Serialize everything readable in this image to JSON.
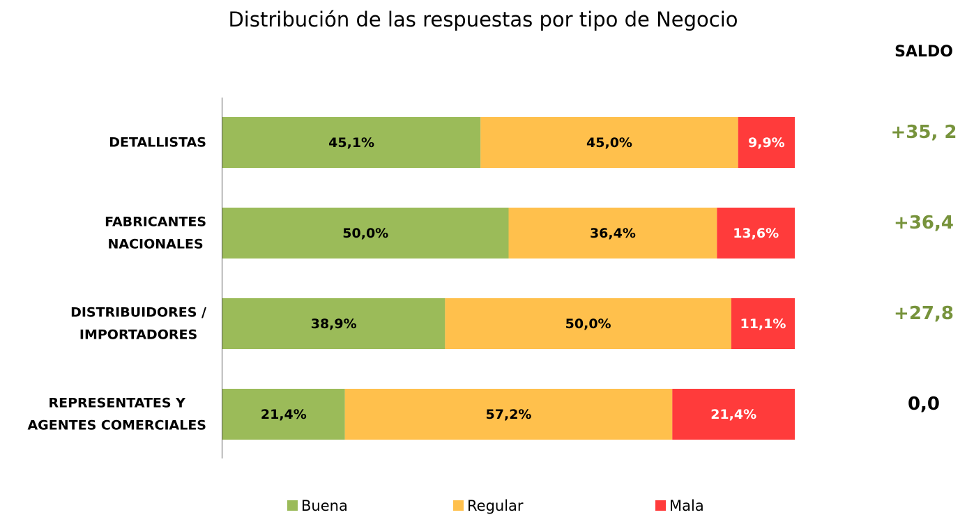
{
  "chart_data": {
    "type": "stacked_bar_horizontal",
    "title": "Distribución de las respuestas por tipo de Negocio",
    "categories": [
      [
        "DETALLISTAS"
      ],
      [
        "FABRICANTES",
        "NACIONALES"
      ],
      [
        "DISTRIBUIDORES /",
        "IMPORTADORES"
      ],
      [
        "REPRESENTATES Y",
        "AGENTES COMERCIALES"
      ]
    ],
    "series": [
      {
        "name": "Buena",
        "color": "#9bbb59",
        "label_color": "#000000",
        "values": [
          45.1,
          50.0,
          38.9,
          21.4
        ],
        "value_labels": [
          "45,1%",
          "50,0%",
          "38,9%",
          "21,4%"
        ]
      },
      {
        "name": "Regular",
        "color": "#ffc04c",
        "label_color": "#000000",
        "values": [
          45.0,
          36.4,
          50.0,
          57.2
        ],
        "value_labels": [
          "45,0%",
          "36,4%",
          "50,0%",
          "57,2%"
        ]
      },
      {
        "name": "Mala",
        "color": "#ff3b3b",
        "label_color": "#ffffff",
        "values": [
          9.9,
          13.6,
          11.1,
          21.4
        ],
        "value_labels": [
          "9,9%",
          "13,6%",
          "11,1%",
          "21,4%"
        ]
      }
    ],
    "xlim": [
      0,
      100
    ],
    "legend": "bottom",
    "saldo": {
      "title": "SALDO",
      "values": [
        35.2,
        36.4,
        27.8,
        0.0
      ],
      "value_labels": [
        "+35, 2",
        "+36,4",
        "+27,8",
        "0,0"
      ],
      "colors": [
        "#77933c",
        "#77933c",
        "#77933c",
        "#000000"
      ]
    }
  }
}
